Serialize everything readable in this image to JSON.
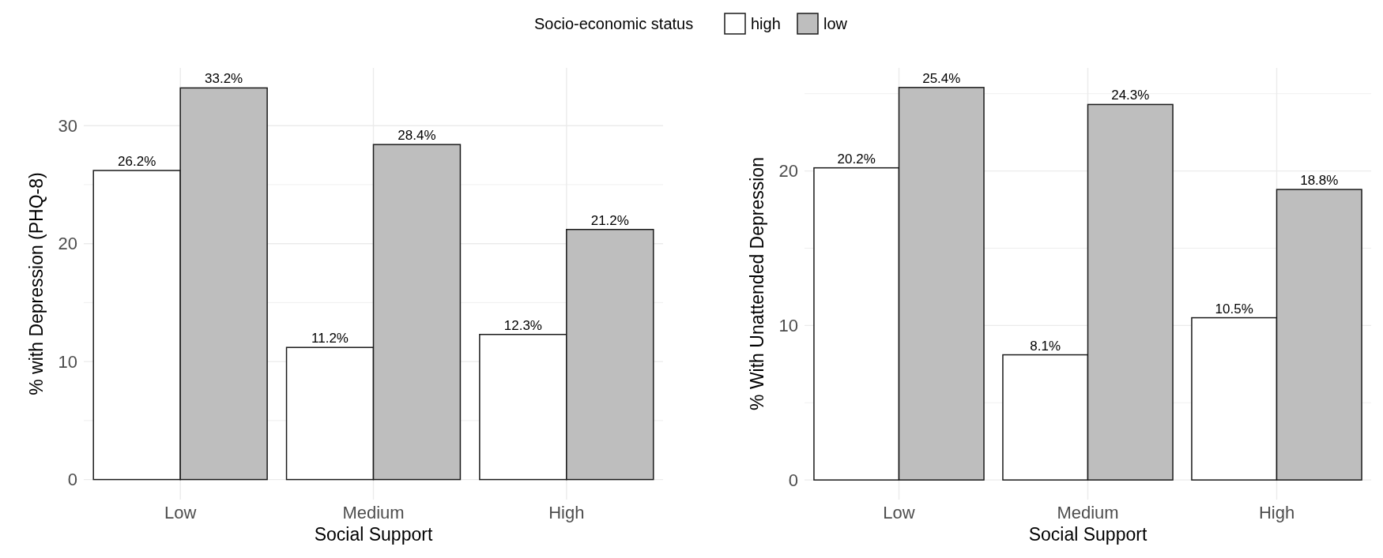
{
  "chart_data": [
    {
      "type": "bar",
      "categories": [
        "Low",
        "Medium",
        "High"
      ],
      "xlabel": "Social Support",
      "ylabel": "% with Depression (PHQ-8)",
      "legend_title": "Socio-economic status",
      "legend": "top",
      "grid": true,
      "ylim": [
        -1.7,
        34.9
      ],
      "yticks": [
        0,
        {
          "value": 5,
          "label": null
        },
        10,
        {
          "value": 15,
          "label": null
        },
        20,
        {
          "value": 25,
          "label": null
        },
        30
      ],
      "series": [
        {
          "name": "high",
          "color": "#ffffff",
          "values": [
            26.2,
            11.2,
            12.3
          ],
          "value_labels": [
            "26.2%",
            "11.2%",
            "12.3%"
          ]
        },
        {
          "name": "low",
          "color": "#bebebe",
          "values": [
            33.2,
            28.4,
            21.2
          ],
          "value_labels": [
            "33.2%",
            "28.4%",
            "21.2%"
          ]
        }
      ]
    },
    {
      "type": "bar",
      "categories": [
        "Low",
        "Medium",
        "High"
      ],
      "xlabel": "Social Support",
      "ylabel": "% With Unattended Depression",
      "grid": true,
      "ylim": [
        -1.27,
        26.67
      ],
      "yticks": [
        0,
        {
          "value": 5,
          "label": null
        },
        10,
        {
          "value": 15,
          "label": null
        },
        20,
        {
          "value": 25,
          "label": null
        }
      ],
      "series": [
        {
          "color": "#ffffff",
          "values": [
            20.2,
            8.1,
            10.5
          ],
          "value_labels": [
            "20.2%",
            "8.1%",
            "10.5%"
          ]
        },
        {
          "color": "#bebebe",
          "values": [
            25.4,
            24.3,
            18.8
          ],
          "value_labels": [
            "25.4%",
            "24.3%",
            "18.8%"
          ]
        }
      ]
    }
  ]
}
